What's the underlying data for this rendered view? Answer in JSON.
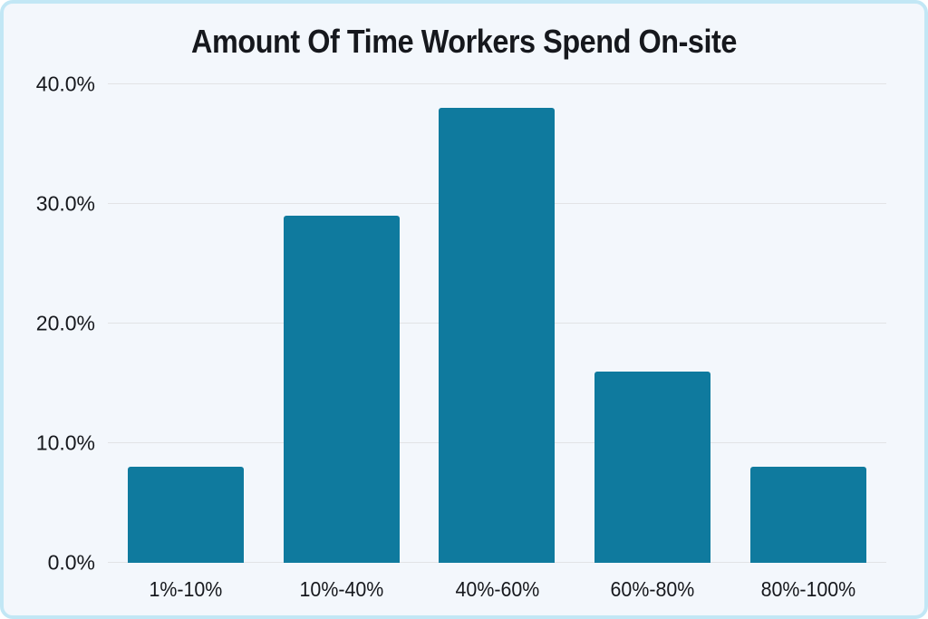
{
  "chart_data": {
    "type": "bar",
    "title": "Amount Of Time Workers Spend On-site",
    "categories": [
      "1%-10%",
      "10%-40%",
      "40%-60%",
      "60%-80%",
      "80%-100%"
    ],
    "values": [
      8.0,
      29.0,
      38.0,
      16.0,
      8.0
    ],
    "xlabel": "",
    "ylabel": "",
    "ylim": [
      0,
      40
    ],
    "yticks": [
      0,
      10,
      20,
      30,
      40
    ],
    "ytick_labels": [
      "0.0%",
      "10.0%",
      "20.0%",
      "30.0%",
      "40.0%"
    ],
    "grid": true,
    "legend": false,
    "bar_color": "#0f7a9e",
    "gridline_color": "#e2e3e6"
  },
  "colors": {
    "card_background": "#f3f7fc",
    "card_border": "#c2e7f5",
    "text": "#16181d"
  }
}
